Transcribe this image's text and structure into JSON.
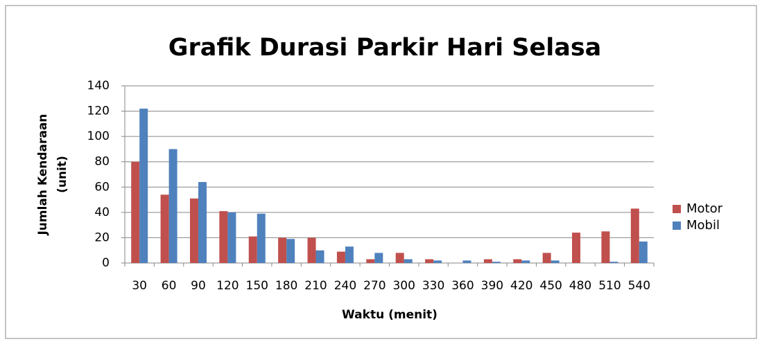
{
  "chart_data": {
    "type": "bar",
    "title": "Grafik Durasi Parkir Hari Selasa",
    "xlabel": "Waktu (menit)",
    "ylabel": [
      "Jumlah Kendaraan",
      "(unit)"
    ],
    "categories": [
      "30",
      "60",
      "90",
      "120",
      "150",
      "180",
      "210",
      "240",
      "270",
      "300",
      "330",
      "360",
      "390",
      "420",
      "450",
      "480",
      "510",
      "540"
    ],
    "series": [
      {
        "name": "Motor",
        "color": "#c0504d",
        "values": [
          80,
          54,
          51,
          41,
          21,
          20,
          20,
          9,
          3,
          8,
          3,
          0,
          3,
          3,
          8,
          24,
          25,
          43
        ]
      },
      {
        "name": "Mobil",
        "color": "#4f81bd",
        "values": [
          122,
          90,
          64,
          40,
          39,
          19,
          10,
          13,
          8,
          3,
          2,
          2,
          1,
          2,
          2,
          0,
          1,
          17
        ]
      }
    ],
    "ylim": [
      0,
      140
    ],
    "yticks": [
      0,
      20,
      40,
      60,
      80,
      100,
      120,
      140
    ],
    "grid": true,
    "legend": "right"
  }
}
